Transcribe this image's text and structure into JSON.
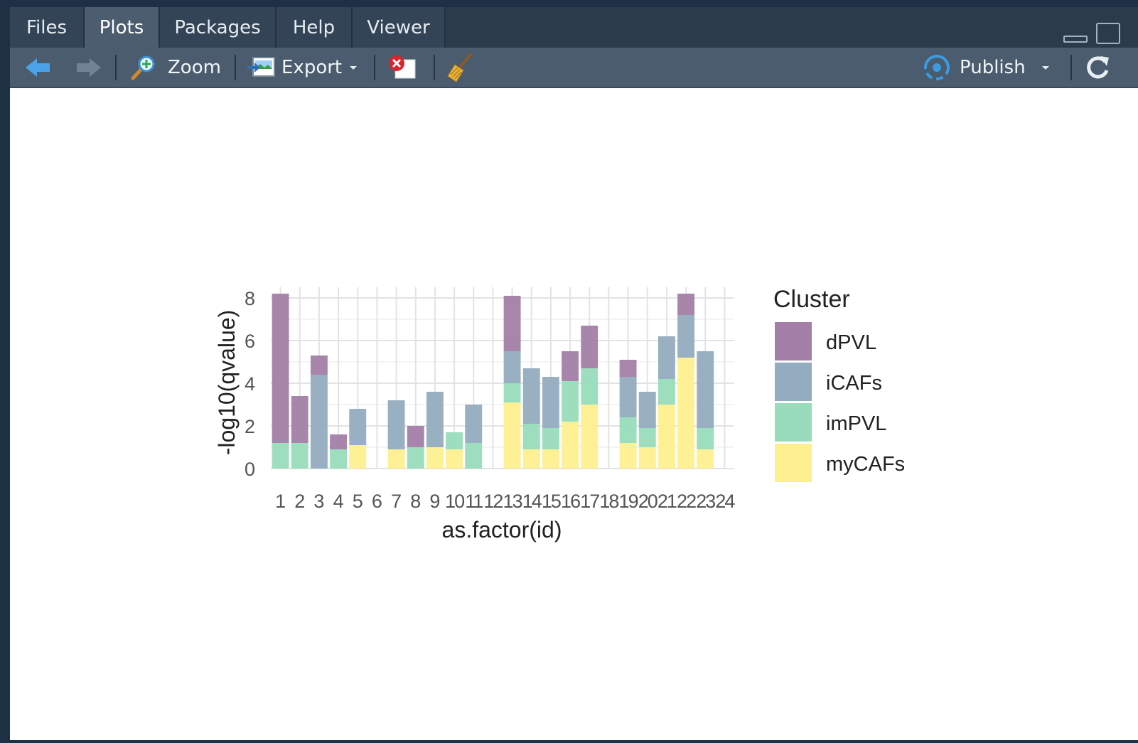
{
  "tabs": [
    {
      "label": "Files"
    },
    {
      "label": "Plots"
    },
    {
      "label": "Packages"
    },
    {
      "label": "Help"
    },
    {
      "label": "Viewer"
    }
  ],
  "active_tab": "Plots",
  "toolbar": {
    "zoom_label": "Zoom",
    "export_label": "Export",
    "publish_label": "Publish"
  },
  "icons": {
    "back": "arrow-left-icon",
    "forward": "arrow-right-icon",
    "zoom": "magnifier-icon",
    "export": "export-image-icon",
    "remove": "remove-plot-icon",
    "clear": "broom-icon",
    "publish": "publish-icon",
    "refresh": "refresh-icon"
  },
  "colors": {
    "dPVL": "#a37fa8",
    "iCAFs": "#94acc0",
    "imPVL": "#98dcbb",
    "myCAFs": "#fdef8f"
  },
  "chart_data": {
    "type": "bar",
    "stacked": true,
    "xlabel": "as.factor(id)",
    "ylabel": "-log10(qvalue)",
    "ylim": [
      0,
      8.5
    ],
    "yticks": [
      0,
      2,
      4,
      6,
      8
    ],
    "grid": true,
    "legend_title": "Cluster",
    "legend_position": "right",
    "categories": [
      "1",
      "2",
      "3",
      "4",
      "5",
      "6",
      "7",
      "8",
      "9",
      "10",
      "11",
      "12",
      "13",
      "14",
      "15",
      "16",
      "17",
      "18",
      "19",
      "20",
      "21",
      "22",
      "23",
      "24"
    ],
    "series": [
      {
        "name": "myCAFs",
        "values": [
          0,
          0,
          0,
          0,
          1.1,
          0,
          0.9,
          0,
          1.0,
          0.9,
          0,
          0,
          3.1,
          0.9,
          0.9,
          2.2,
          3.0,
          0,
          1.2,
          1.0,
          3.0,
          5.2,
          0.9,
          0
        ]
      },
      {
        "name": "imPVL",
        "values": [
          1.2,
          1.2,
          0,
          0.9,
          0,
          0,
          0,
          1.0,
          0,
          0.8,
          1.2,
          0,
          0.9,
          1.2,
          1.0,
          1.9,
          1.7,
          0,
          1.2,
          0.9,
          1.2,
          0,
          1.0,
          0
        ]
      },
      {
        "name": "iCAFs",
        "values": [
          0,
          0,
          4.4,
          0,
          1.7,
          0,
          2.3,
          0,
          2.6,
          0,
          1.8,
          0,
          1.5,
          2.6,
          2.4,
          0,
          0,
          0,
          1.9,
          1.7,
          2.0,
          2.0,
          3.6,
          0
        ]
      },
      {
        "name": "dPVL",
        "values": [
          7.0,
          2.2,
          0.9,
          0.7,
          0,
          0,
          0,
          1.0,
          0,
          0,
          0,
          0,
          2.6,
          0,
          0,
          1.4,
          2.0,
          0,
          0.8,
          0,
          0,
          1.0,
          0,
          0
        ]
      }
    ]
  }
}
